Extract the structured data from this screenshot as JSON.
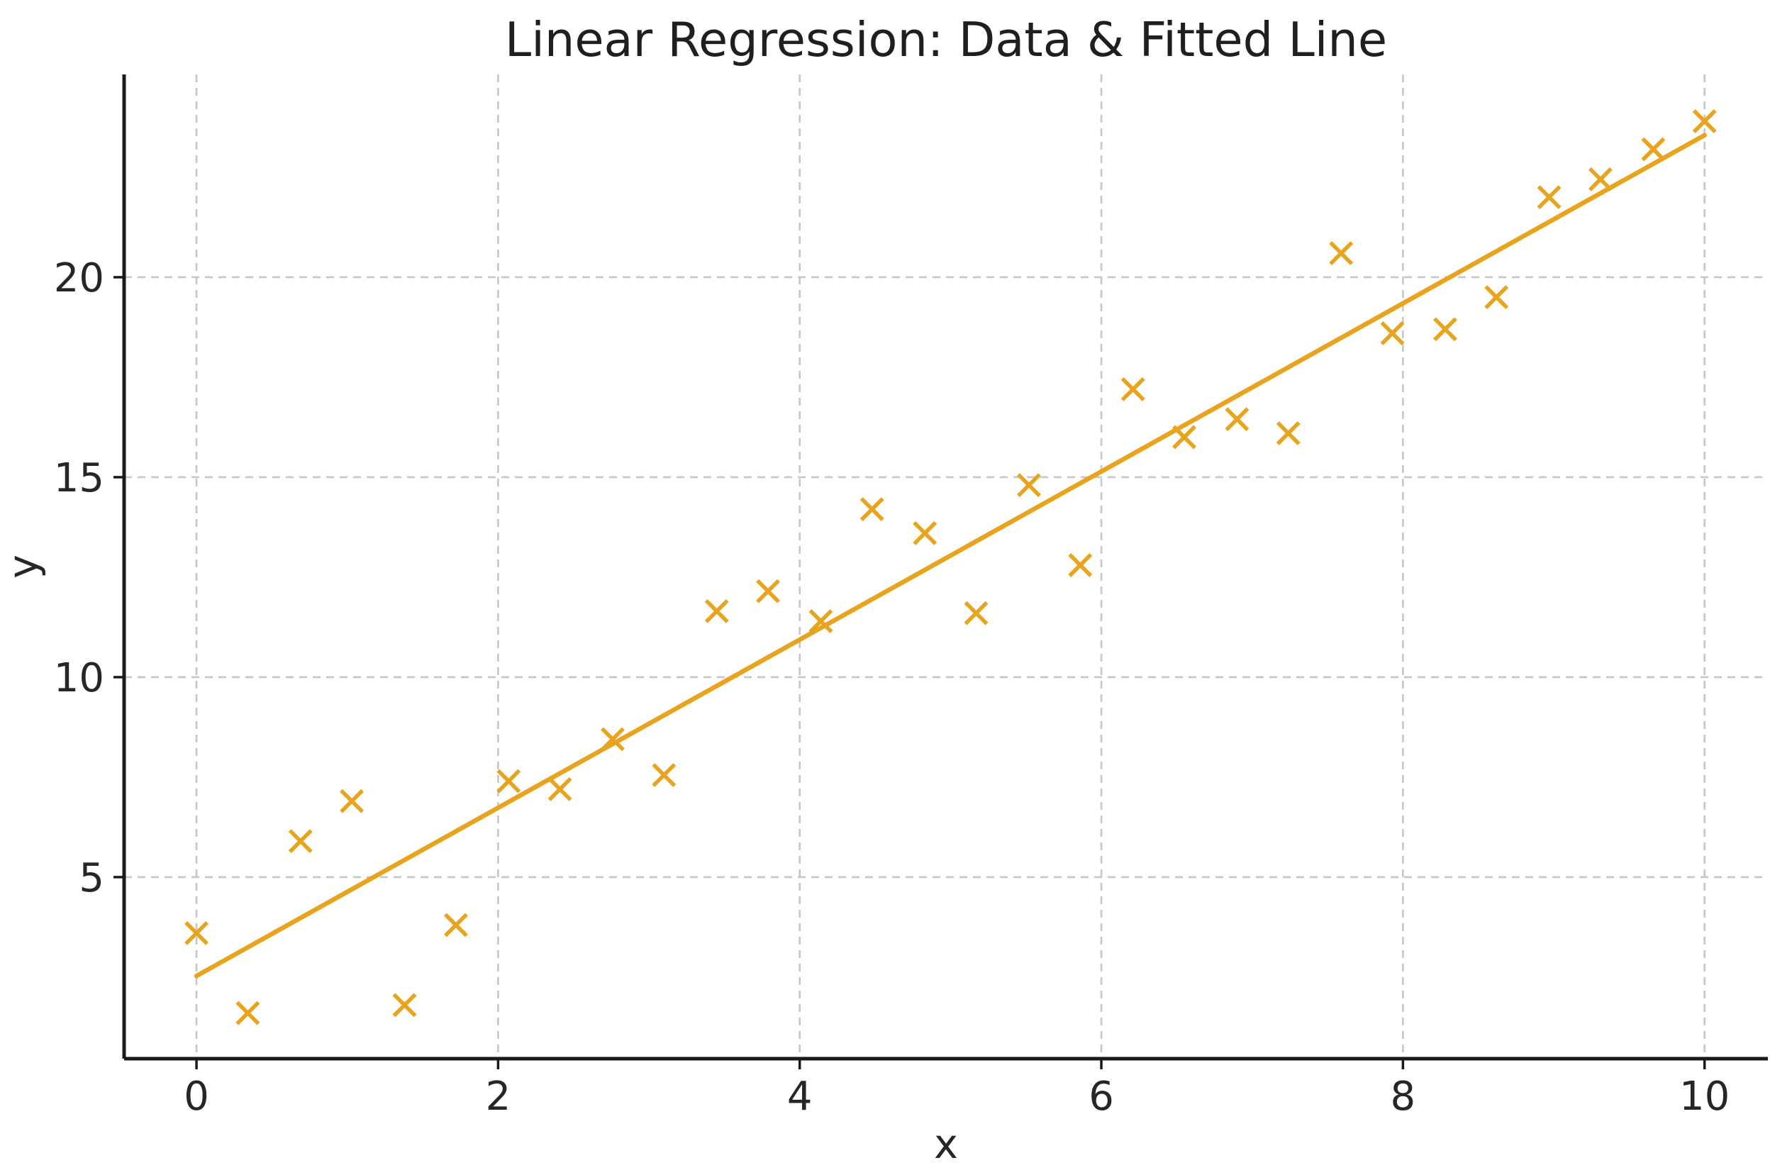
{
  "chart_data": {
    "type": "scatter",
    "title": "Linear Regression: Data & Fitted Line",
    "xlabel": "x",
    "ylabel": "y",
    "xlim": [
      -0.48,
      10.42
    ],
    "ylim": [
      0.46,
      25.07
    ],
    "x_ticks": [
      0,
      2,
      4,
      6,
      8,
      10
    ],
    "y_ticks": [
      5,
      10,
      15,
      20
    ],
    "grid": true,
    "legend": false,
    "colors": {
      "accent_orange": "#E8A41E",
      "grid": "#c7c7c7",
      "spine": "#1a1a1a",
      "text": "#262626",
      "background": "#ffffff"
    },
    "series": [
      {
        "name": "Data",
        "type": "scatter",
        "marker": "x",
        "color": "#E8A41E",
        "points": [
          [
            0.0,
            3.6
          ],
          [
            0.34,
            1.6
          ],
          [
            0.69,
            5.9
          ],
          [
            1.03,
            6.9
          ],
          [
            1.38,
            1.8
          ],
          [
            1.72,
            3.8
          ],
          [
            2.07,
            7.4
          ],
          [
            2.41,
            7.2
          ],
          [
            2.76,
            8.45
          ],
          [
            3.1,
            7.55
          ],
          [
            3.45,
            11.65
          ],
          [
            3.79,
            12.15
          ],
          [
            4.14,
            11.4
          ],
          [
            4.48,
            14.2
          ],
          [
            4.83,
            13.6
          ],
          [
            5.17,
            11.6
          ],
          [
            5.52,
            14.8
          ],
          [
            5.86,
            12.8
          ],
          [
            6.21,
            17.2
          ],
          [
            6.55,
            16.0
          ],
          [
            6.9,
            16.45
          ],
          [
            7.24,
            16.1
          ],
          [
            7.59,
            20.6
          ],
          [
            7.93,
            18.6
          ],
          [
            8.28,
            18.7
          ],
          [
            8.62,
            19.5
          ],
          [
            8.97,
            22.0
          ],
          [
            9.31,
            22.45
          ],
          [
            9.66,
            23.2
          ],
          [
            10.0,
            23.9
          ]
        ]
      },
      {
        "name": "Fitted Line",
        "type": "line",
        "color": "#E8A41E",
        "points": [
          [
            0.0,
            2.53
          ],
          [
            10.0,
            23.55
          ]
        ]
      }
    ]
  }
}
